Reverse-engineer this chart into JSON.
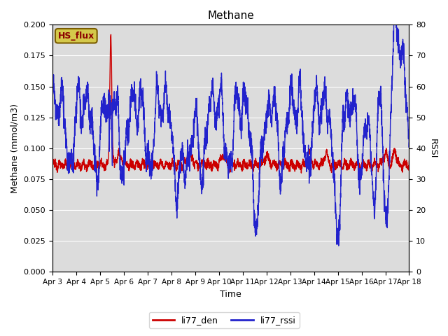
{
  "title": "Methane",
  "ylabel_left": "Methane (mmol/m3)",
  "ylabel_right": "RSSI",
  "xlabel": "Time",
  "ylim_left": [
    0.0,
    0.2
  ],
  "ylim_right": [
    0,
    80
  ],
  "bg_color": "#dcdcdc",
  "fig_bg_color": "#ffffff",
  "grid_color": "#ffffff",
  "annotation_text": "HS_flux",
  "annotation_bg": "#d4c84a",
  "annotation_border": "#7a5c00",
  "legend_labels": [
    "li77_den",
    "li77_rssi"
  ],
  "line_colors": [
    "#cc0000",
    "#2222cc"
  ],
  "xtick_labels": [
    "Apr 3",
    "Apr 4",
    "Apr 5",
    "Apr 6",
    "Apr 7",
    "Apr 8",
    "Apr 9",
    "Apr 10",
    "Apr 11",
    "Apr 12",
    "Apr 13",
    "Apr 14",
    "Apr 15",
    "Apr 16",
    "Apr 17",
    "Apr 18"
  ]
}
